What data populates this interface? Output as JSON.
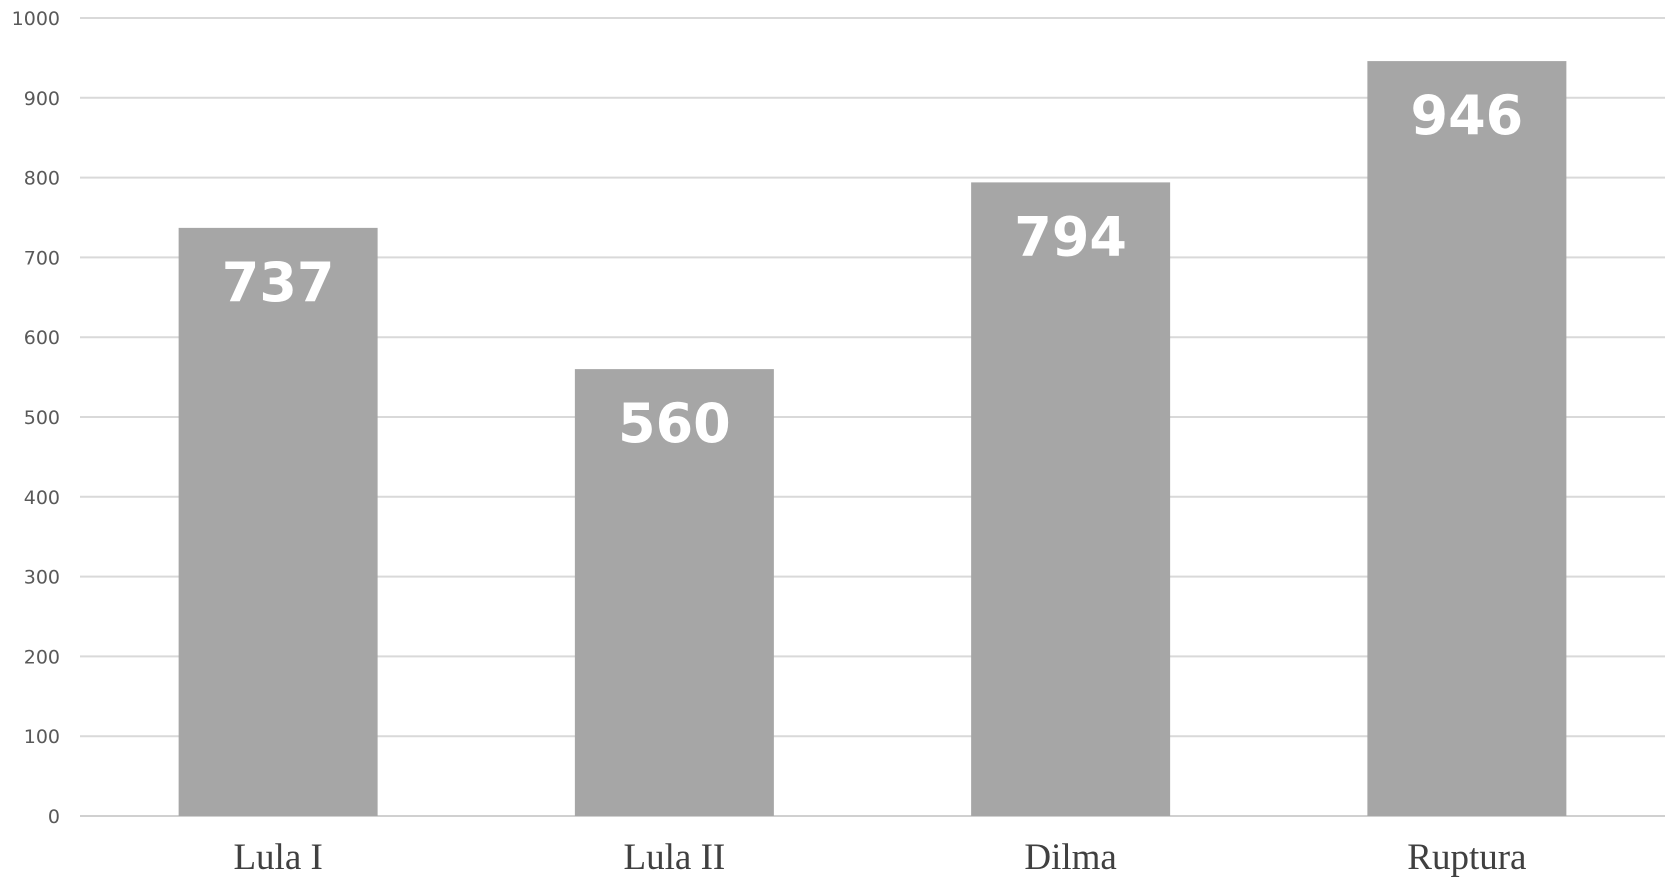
{
  "chart_data": {
    "type": "bar",
    "categories": [
      "Lula I",
      "Lula II",
      "Dilma",
      "Ruptura"
    ],
    "values": [
      737,
      560,
      794,
      946
    ],
    "data_labels": [
      "737",
      "560",
      "794",
      "946"
    ],
    "title": "",
    "xlabel": "",
    "ylabel": "",
    "ylim": [
      0,
      1000
    ],
    "yticks": [
      0,
      100,
      200,
      300,
      400,
      500,
      600,
      700,
      800,
      900,
      1000
    ],
    "grid": true,
    "legend": "none",
    "bar_color": "#a6a6a6",
    "label_color": "#ffffff"
  }
}
